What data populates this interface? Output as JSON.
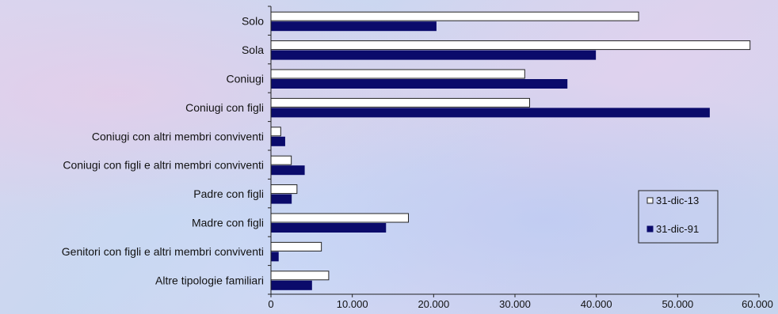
{
  "chart_data": {
    "type": "bar",
    "orientation": "horizontal",
    "categories": [
      "Solo",
      "Sola",
      "Coniugi",
      "Coniugi con figli",
      "Coniugi con altri membri conviventi",
      "Coniugi con figli e altri membri conviventi",
      "Padre con figli",
      "Madre con figli",
      "Genitori con figli e altri membri conviventi",
      "Altre tipologie familiari"
    ],
    "series": [
      {
        "name": "31-dic-13",
        "color": "#ffffff",
        "values": [
          45200,
          58900,
          31200,
          31800,
          1200,
          2500,
          3200,
          16900,
          6200,
          7100
        ]
      },
      {
        "name": "31-dic-91",
        "color": "#0b0b6b",
        "values": [
          20300,
          39900,
          36400,
          53900,
          1700,
          4100,
          2500,
          14100,
          900,
          5000
        ]
      }
    ],
    "x_ticks": [
      "0",
      "10.000",
      "20.000",
      "30.000",
      "40.000",
      "50.000",
      "60.000"
    ],
    "xlim": [
      0,
      60000
    ],
    "grid": false,
    "legend_position": "right",
    "title": "",
    "xlabel": "",
    "ylabel": ""
  }
}
